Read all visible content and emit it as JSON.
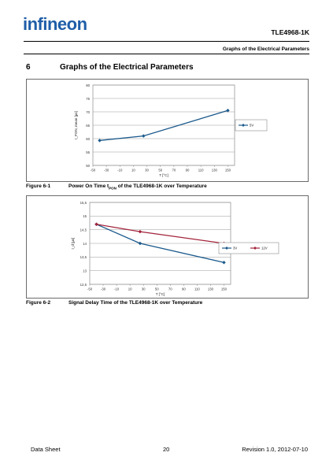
{
  "header": {
    "logo_text": "infineon",
    "doc_title": "TLE4968-1K",
    "section_header": "Graphs of the Electrical Parameters"
  },
  "section": {
    "number": "6",
    "title": "Graphs of the Electrical Parameters"
  },
  "figures": [
    {
      "number": "Figure 6-1",
      "caption_pre": "Power On Time t",
      "caption_sub": "PON",
      "caption_post": " of the TLE4968-1K over Temperature"
    },
    {
      "number": "Figure 6-2",
      "caption_pre": "Signal Delay Time of the TLE4968-1K over Temperature",
      "caption_sub": "",
      "caption_post": ""
    }
  ],
  "footer": {
    "left": "Data Sheet",
    "page": "20",
    "right": "Revision 1.0, 2012-07-10"
  },
  "colors": {
    "blue": "#1c5a8c",
    "red": "#a3233a",
    "grid": "#9a9a9a",
    "logo": "#1f5ea8"
  },
  "chart_data": [
    {
      "type": "line",
      "ylabel": "t_PON, mean [µs]",
      "xlabel": "T [°C]",
      "x_ticks": [
        -50,
        -30,
        -10,
        10,
        30,
        50,
        70,
        90,
        110,
        130,
        150
      ],
      "y_ticks": [
        50,
        55,
        60,
        65,
        70,
        75,
        80
      ],
      "xlim": [
        -50,
        160
      ],
      "ylim": [
        50,
        80
      ],
      "grid": true,
      "legend_position": "right",
      "series": [
        {
          "name": "5V",
          "color": "#1c5a8c",
          "x": [
            -40,
            25,
            150
          ],
          "y": [
            59.3,
            61.0,
            70.5
          ]
        }
      ]
    },
    {
      "type": "line",
      "ylabel": "t_d [µs]",
      "xlabel": "T [°C]",
      "x_ticks": [
        -50,
        -30,
        -10,
        10,
        30,
        50,
        70,
        90,
        110,
        130,
        150
      ],
      "y_ticks": [
        "12,5",
        "13",
        "13,5",
        "14",
        "14,5",
        "15",
        "15,5"
      ],
      "y_tick_values": [
        12.5,
        13,
        13.5,
        14,
        14.5,
        15,
        15.5
      ],
      "xlim": [
        -50,
        160
      ],
      "ylim": [
        12.5,
        15.5
      ],
      "grid": true,
      "legend_position": "right",
      "series": [
        {
          "name": "3V",
          "color": "#1c5a8c",
          "x": [
            -40,
            25,
            150
          ],
          "y": [
            14.7,
            14.0,
            13.3
          ]
        },
        {
          "name": "12V",
          "color": "#a3233a",
          "x": [
            -40,
            25,
            150
          ],
          "y": [
            14.7,
            14.43,
            14.0
          ]
        }
      ]
    }
  ]
}
